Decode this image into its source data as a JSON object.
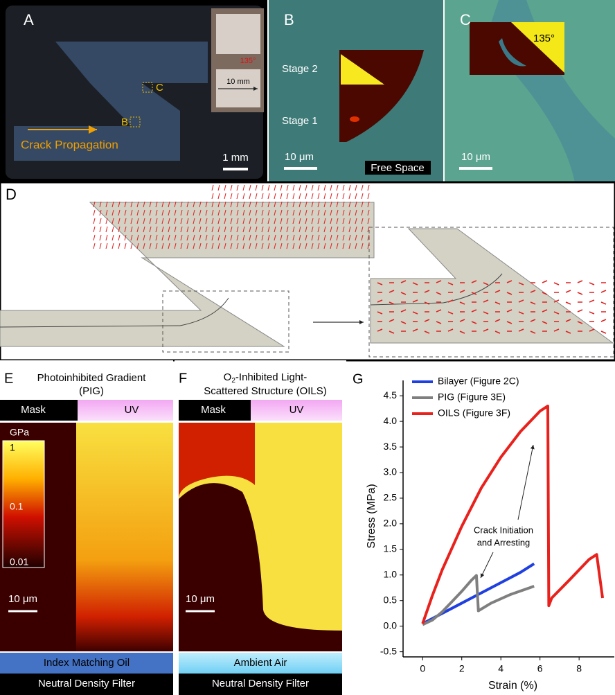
{
  "panels": {
    "a": {
      "letter": "A",
      "inset_scale": "10 mm",
      "angle": "135°",
      "mark_c": "C",
      "mark_b": "B",
      "arrow_label": "Crack Propagation",
      "scale": "1 mm"
    },
    "b": {
      "letter": "B",
      "stage2": "Stage 2",
      "stage1": "Stage 1",
      "scale": "10 μm",
      "free": "Free Space"
    },
    "c": {
      "letter": "C",
      "angle": "135°",
      "scale": "10 μm"
    },
    "d": {
      "letter": "D"
    },
    "e": {
      "letter": "E",
      "title_line1": "Photoinhibited Gradient",
      "title_line2": "(PIG)",
      "mask": "Mask",
      "uv": "UV",
      "unit": "GPa",
      "cb_top": "1",
      "cb_mid": "0.1",
      "cb_bot": "0.01",
      "scale": "10 μm",
      "medium": "Index Matching Oil",
      "filter": "Neutral Density Filter"
    },
    "f": {
      "letter": "F",
      "title_o": "O",
      "title_sub": "2",
      "title_rest": "-Inhibited Light-",
      "title_line2": "Scattered Structure (OILS)",
      "mask": "Mask",
      "uv": "UV",
      "scale": "10 μm",
      "medium": "Ambient Air",
      "filter": "Neutral Density Filter"
    },
    "g": {
      "letter": "G",
      "annotation_line1": "Crack Initiation",
      "annotation_line2": "and Arresting"
    }
  },
  "chart_data": {
    "type": "line",
    "x_label": "Strain (%)",
    "y_label": "Stress (MPa)",
    "xlim": [
      -1,
      9.8
    ],
    "ylim": [
      -0.6,
      4.8
    ],
    "xticks": [
      0,
      2,
      4,
      6,
      8
    ],
    "yticks": [
      -0.5,
      {
        "value": 0,
        "label": "0.0"
      },
      0.5,
      {
        "value": 1,
        "label": "1.0"
      },
      1.5,
      {
        "value": 2,
        "label": "2.0"
      },
      2.5,
      {
        "value": 3,
        "label": "3.0"
      },
      3.5,
      {
        "value": 4,
        "label": "4.0"
      },
      4.5
    ],
    "legend": "upper left",
    "series": [
      {
        "name": "Bilayer (Figure 2C)",
        "color": "#1f3fe0",
        "x": [
          0,
          1,
          2,
          3,
          4,
          5,
          5.7
        ],
        "values": [
          0.05,
          0.25,
          0.45,
          0.65,
          0.85,
          1.05,
          1.22
        ]
      },
      {
        "name": "PIG  (Figure 3E)",
        "color": "#7f7f7f",
        "x": [
          0,
          0.5,
          1,
          1.5,
          2,
          2.5,
          2.75,
          2.85,
          3.5,
          4.5,
          5.7
        ],
        "values": [
          0.03,
          0.12,
          0.28,
          0.48,
          0.68,
          0.9,
          0.99,
          0.3,
          0.45,
          0.62,
          0.78
        ]
      },
      {
        "name": "OILS (Figure 3F)",
        "color": "#e8211c",
        "x": [
          0,
          0.5,
          1,
          2,
          3,
          4,
          5,
          6,
          6.4,
          6.45,
          6.6,
          7.5,
          8.5,
          8.9,
          9.2
        ],
        "values": [
          0.05,
          0.6,
          1.1,
          1.95,
          2.7,
          3.3,
          3.8,
          4.2,
          4.3,
          0.4,
          0.55,
          0.9,
          1.3,
          1.4,
          0.55
        ]
      }
    ]
  }
}
